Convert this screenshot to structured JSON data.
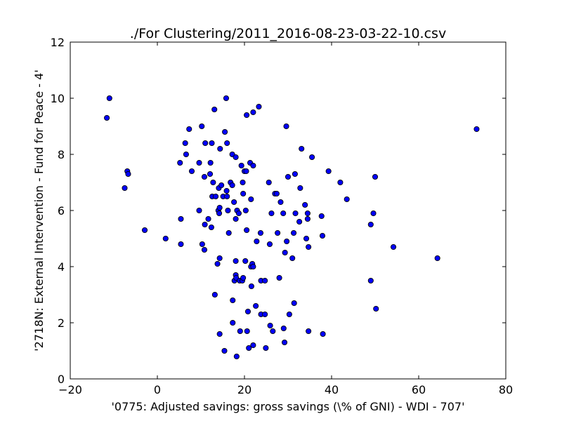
{
  "chart_data": {
    "type": "scatter",
    "title": "./For Clustering/2011_2016-08-23-03-22-10.csv",
    "xlabel": "'0775: Adjusted savings: gross savings  (\\% of GNI) - WDI - 707'",
    "ylabel": "'2718N: External Intervention - Fund for Peace - 4'",
    "xlim": [
      -20,
      80
    ],
    "ylim": [
      0,
      12
    ],
    "xticks": [
      -20,
      0,
      20,
      40,
      60,
      80
    ],
    "yticks": [
      0,
      2,
      4,
      6,
      8,
      10,
      12
    ],
    "xtick_labels": [
      "−20",
      "0",
      "20",
      "40",
      "60",
      "80"
    ],
    "ytick_labels": [
      "0",
      "2",
      "4",
      "6",
      "8",
      "10",
      "12"
    ],
    "grid": false,
    "marker_color": "#0000ff",
    "marker_edge_color": "#000000",
    "points": [
      {
        "x": -11.6,
        "y": 9.3
      },
      {
        "x": -11.0,
        "y": 10.0
      },
      {
        "x": -7.5,
        "y": 6.8
      },
      {
        "x": -6.9,
        "y": 7.4
      },
      {
        "x": -6.7,
        "y": 7.3
      },
      {
        "x": -2.9,
        "y": 5.3
      },
      {
        "x": 1.9,
        "y": 5.0
      },
      {
        "x": 5.2,
        "y": 7.7
      },
      {
        "x": 5.4,
        "y": 5.7
      },
      {
        "x": 5.4,
        "y": 4.8
      },
      {
        "x": 6.4,
        "y": 8.4
      },
      {
        "x": 6.6,
        "y": 8.0
      },
      {
        "x": 7.3,
        "y": 8.9
      },
      {
        "x": 7.9,
        "y": 7.4
      },
      {
        "x": 9.6,
        "y": 6.0
      },
      {
        "x": 9.6,
        "y": 7.7
      },
      {
        "x": 10.2,
        "y": 9.0
      },
      {
        "x": 10.3,
        "y": 4.8
      },
      {
        "x": 10.8,
        "y": 7.2
      },
      {
        "x": 11.0,
        "y": 8.4
      },
      {
        "x": 10.9,
        "y": 5.5
      },
      {
        "x": 10.8,
        "y": 4.6
      },
      {
        "x": 11.7,
        "y": 5.7
      },
      {
        "x": 12.1,
        "y": 7.3
      },
      {
        "x": 12.2,
        "y": 7.7
      },
      {
        "x": 12.5,
        "y": 8.4
      },
      {
        "x": 12.4,
        "y": 5.4
      },
      {
        "x": 12.6,
        "y": 6.5
      },
      {
        "x": 12.8,
        "y": 7.0
      },
      {
        "x": 13.1,
        "y": 9.6
      },
      {
        "x": 13.2,
        "y": 3.0
      },
      {
        "x": 13.4,
        "y": 6.5
      },
      {
        "x": 13.8,
        "y": 4.1
      },
      {
        "x": 14.1,
        "y": 6.8
      },
      {
        "x": 14.0,
        "y": 6.0
      },
      {
        "x": 14.2,
        "y": 5.9
      },
      {
        "x": 14.3,
        "y": 6.1
      },
      {
        "x": 14.3,
        "y": 4.3
      },
      {
        "x": 14.4,
        "y": 8.2
      },
      {
        "x": 14.3,
        "y": 1.6
      },
      {
        "x": 14.7,
        "y": 6.9
      },
      {
        "x": 15.1,
        "y": 6.5
      },
      {
        "x": 15.5,
        "y": 8.8
      },
      {
        "x": 15.4,
        "y": 1.0
      },
      {
        "x": 15.8,
        "y": 10.0
      },
      {
        "x": 15.9,
        "y": 6.7
      },
      {
        "x": 16.0,
        "y": 6.5
      },
      {
        "x": 16.0,
        "y": 8.4
      },
      {
        "x": 16.2,
        "y": 6.0
      },
      {
        "x": 16.4,
        "y": 5.2
      },
      {
        "x": 16.8,
        "y": 7.0
      },
      {
        "x": 17.2,
        "y": 8.0
      },
      {
        "x": 17.2,
        "y": 6.9
      },
      {
        "x": 17.3,
        "y": 2.8
      },
      {
        "x": 17.3,
        "y": 2.0
      },
      {
        "x": 17.6,
        "y": 6.3
      },
      {
        "x": 17.7,
        "y": 3.5
      },
      {
        "x": 18.0,
        "y": 7.9
      },
      {
        "x": 18.0,
        "y": 5.7
      },
      {
        "x": 18.0,
        "y": 4.2
      },
      {
        "x": 18.0,
        "y": 3.7
      },
      {
        "x": 18.1,
        "y": 3.6
      },
      {
        "x": 18.3,
        "y": 6.0
      },
      {
        "x": 18.2,
        "y": 0.8
      },
      {
        "x": 18.7,
        "y": 5.9
      },
      {
        "x": 18.9,
        "y": 3.5
      },
      {
        "x": 19.0,
        "y": 1.7
      },
      {
        "x": 19.3,
        "y": 7.6
      },
      {
        "x": 19.5,
        "y": 3.5
      },
      {
        "x": 19.6,
        "y": 7.0
      },
      {
        "x": 19.7,
        "y": 6.6
      },
      {
        "x": 19.7,
        "y": 3.6
      },
      {
        "x": 20.0,
        "y": 7.4
      },
      {
        "x": 20.2,
        "y": 4.2
      },
      {
        "x": 20.3,
        "y": 6.0
      },
      {
        "x": 20.4,
        "y": 7.4
      },
      {
        "x": 20.5,
        "y": 5.3
      },
      {
        "x": 20.5,
        "y": 9.4
      },
      {
        "x": 20.6,
        "y": 1.7
      },
      {
        "x": 20.8,
        "y": 2.4
      },
      {
        "x": 21.0,
        "y": 1.1
      },
      {
        "x": 21.3,
        "y": 7.7
      },
      {
        "x": 21.5,
        "y": 4.0
      },
      {
        "x": 21.5,
        "y": 6.4
      },
      {
        "x": 21.6,
        "y": 3.3
      },
      {
        "x": 21.8,
        "y": 4.1
      },
      {
        "x": 22.0,
        "y": 9.5
      },
      {
        "x": 22.0,
        "y": 7.6
      },
      {
        "x": 22.0,
        "y": 4.0
      },
      {
        "x": 22.0,
        "y": 1.2
      },
      {
        "x": 22.6,
        "y": 2.6
      },
      {
        "x": 22.8,
        "y": 4.9
      },
      {
        "x": 23.3,
        "y": 9.7
      },
      {
        "x": 23.7,
        "y": 5.2
      },
      {
        "x": 23.8,
        "y": 3.5
      },
      {
        "x": 23.8,
        "y": 2.3
      },
      {
        "x": 24.7,
        "y": 3.5
      },
      {
        "x": 24.7,
        "y": 2.3
      },
      {
        "x": 24.9,
        "y": 1.1
      },
      {
        "x": 25.6,
        "y": 7.0
      },
      {
        "x": 25.8,
        "y": 4.8
      },
      {
        "x": 25.9,
        "y": 1.9
      },
      {
        "x": 26.2,
        "y": 5.9
      },
      {
        "x": 26.5,
        "y": 1.7
      },
      {
        "x": 27.0,
        "y": 6.6
      },
      {
        "x": 27.4,
        "y": 6.6
      },
      {
        "x": 27.6,
        "y": 5.2
      },
      {
        "x": 28.0,
        "y": 3.6
      },
      {
        "x": 28.3,
        "y": 6.3
      },
      {
        "x": 28.9,
        "y": 5.9
      },
      {
        "x": 29.0,
        "y": 1.8
      },
      {
        "x": 29.2,
        "y": 1.3
      },
      {
        "x": 29.3,
        "y": 4.5
      },
      {
        "x": 29.6,
        "y": 9.0
      },
      {
        "x": 29.7,
        "y": 4.9
      },
      {
        "x": 30.0,
        "y": 7.2
      },
      {
        "x": 30.3,
        "y": 2.3
      },
      {
        "x": 31.0,
        "y": 4.3
      },
      {
        "x": 31.3,
        "y": 5.2
      },
      {
        "x": 31.4,
        "y": 2.7
      },
      {
        "x": 31.6,
        "y": 7.3
      },
      {
        "x": 31.7,
        "y": 5.9
      },
      {
        "x": 32.6,
        "y": 5.6
      },
      {
        "x": 32.8,
        "y": 6.8
      },
      {
        "x": 33.1,
        "y": 8.2
      },
      {
        "x": 33.9,
        "y": 6.2
      },
      {
        "x": 34.2,
        "y": 5.0
      },
      {
        "x": 34.5,
        "y": 5.9
      },
      {
        "x": 34.5,
        "y": 5.7
      },
      {
        "x": 34.7,
        "y": 4.7
      },
      {
        "x": 34.7,
        "y": 1.7
      },
      {
        "x": 35.5,
        "y": 7.9
      },
      {
        "x": 37.7,
        "y": 5.8
      },
      {
        "x": 37.9,
        "y": 5.1
      },
      {
        "x": 38.0,
        "y": 1.6
      },
      {
        "x": 39.3,
        "y": 7.4
      },
      {
        "x": 42.0,
        "y": 7.0
      },
      {
        "x": 43.5,
        "y": 6.4
      },
      {
        "x": 49.0,
        "y": 5.5
      },
      {
        "x": 49.0,
        "y": 3.5
      },
      {
        "x": 49.6,
        "y": 5.9
      },
      {
        "x": 50.0,
        "y": 7.2
      },
      {
        "x": 50.2,
        "y": 2.5
      },
      {
        "x": 54.2,
        "y": 4.7
      },
      {
        "x": 64.3,
        "y": 4.3
      },
      {
        "x": 73.3,
        "y": 8.9
      }
    ]
  }
}
